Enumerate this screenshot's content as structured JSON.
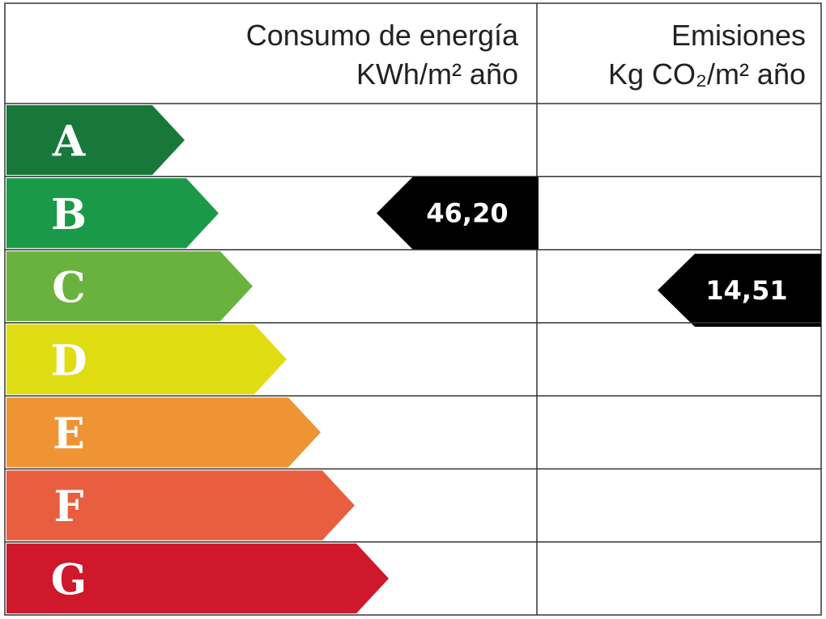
{
  "header": {
    "energy_title": "Consumo de energía",
    "energy_unit": "KWh/m² año",
    "emissions_title": "Emisiones",
    "emissions_unit": "Kg CO₂/m² año"
  },
  "rows": [
    {
      "letter": "A",
      "color": "#17783a"
    },
    {
      "letter": "B",
      "color": "#1a9a48",
      "energy": "46,20"
    },
    {
      "letter": "C",
      "color": "#6ab23e",
      "emissions": "14,51"
    },
    {
      "letter": "D",
      "color": "#e0dc12"
    },
    {
      "letter": "E",
      "color": "#ef9434"
    },
    {
      "letter": "F",
      "color": "#e95e3f"
    },
    {
      "letter": "G",
      "color": "#cf182b"
    }
  ]
}
